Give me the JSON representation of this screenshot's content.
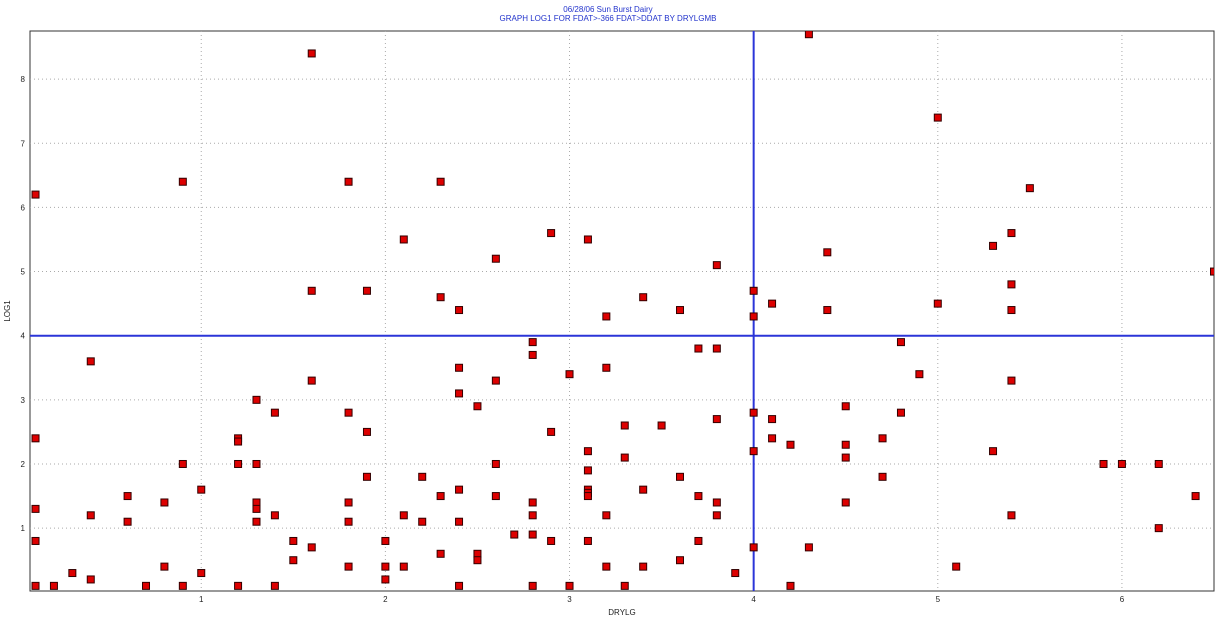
{
  "chart_data": {
    "type": "scatter",
    "title": "06/28/06     Sun Burst Dairy",
    "subtitle": "GRAPH LOG1 FOR FDAT>-366 FDAT>DDAT BY DRYLGMB",
    "xlabel": "DRYLG",
    "ylabel": "LOG1",
    "xlim": [
      0.07,
      6.5
    ],
    "ylim": [
      0.02,
      8.75
    ],
    "xticks": [
      1,
      2,
      3,
      4,
      5,
      6
    ],
    "yticks": [
      1,
      2,
      3,
      4,
      5,
      6,
      7,
      8
    ],
    "grid": true,
    "reference_lines": {
      "x": 4,
      "y": 4
    },
    "colors": {
      "marker": "#dd0000",
      "marker_edge": "#330000",
      "reference": "#2b35d8",
      "grid": "#aaaaaa",
      "text": "#2233cc"
    },
    "points": [
      [
        0.1,
        6.2
      ],
      [
        0.1,
        2.4
      ],
      [
        0.1,
        1.3
      ],
      [
        0.1,
        0.8
      ],
      [
        0.1,
        0.1
      ],
      [
        0.2,
        0.1
      ],
      [
        0.3,
        0.3
      ],
      [
        0.4,
        3.6
      ],
      [
        0.4,
        1.2
      ],
      [
        0.4,
        0.2
      ],
      [
        0.6,
        1.5
      ],
      [
        0.6,
        1.1
      ],
      [
        0.7,
        0.1
      ],
      [
        0.8,
        1.4
      ],
      [
        0.8,
        0.4
      ],
      [
        0.9,
        6.4
      ],
      [
        0.9,
        2.0
      ],
      [
        0.9,
        0.1
      ],
      [
        1.0,
        1.6
      ],
      [
        1.0,
        0.3
      ],
      [
        1.2,
        2.4
      ],
      [
        1.2,
        2.35
      ],
      [
        1.2,
        2.0
      ],
      [
        1.2,
        0.1
      ],
      [
        1.3,
        3.0
      ],
      [
        1.3,
        2.0
      ],
      [
        1.3,
        1.4
      ],
      [
        1.3,
        1.3
      ],
      [
        1.3,
        1.1
      ],
      [
        1.4,
        2.8
      ],
      [
        1.4,
        1.2
      ],
      [
        1.4,
        0.1
      ],
      [
        1.5,
        0.8
      ],
      [
        1.5,
        0.5
      ],
      [
        1.6,
        8.4
      ],
      [
        1.6,
        4.7
      ],
      [
        1.6,
        3.3
      ],
      [
        1.6,
        0.7
      ],
      [
        1.8,
        6.4
      ],
      [
        1.8,
        2.8
      ],
      [
        1.8,
        1.4
      ],
      [
        1.8,
        1.1
      ],
      [
        1.8,
        0.4
      ],
      [
        1.9,
        4.7
      ],
      [
        1.9,
        2.5
      ],
      [
        1.9,
        1.8
      ],
      [
        2.0,
        0.8
      ],
      [
        2.0,
        0.4
      ],
      [
        2.0,
        0.2
      ],
      [
        2.1,
        5.5
      ],
      [
        2.1,
        1.2
      ],
      [
        2.1,
        0.4
      ],
      [
        2.2,
        1.8
      ],
      [
        2.2,
        1.1
      ],
      [
        2.3,
        6.4
      ],
      [
        2.3,
        4.6
      ],
      [
        2.3,
        1.5
      ],
      [
        2.3,
        0.6
      ],
      [
        2.4,
        4.4
      ],
      [
        2.4,
        3.5
      ],
      [
        2.4,
        3.1
      ],
      [
        2.4,
        1.6
      ],
      [
        2.4,
        1.1
      ],
      [
        2.4,
        0.1
      ],
      [
        2.5,
        2.9
      ],
      [
        2.5,
        0.6
      ],
      [
        2.5,
        0.5
      ],
      [
        2.6,
        5.2
      ],
      [
        2.6,
        3.3
      ],
      [
        2.6,
        2.0
      ],
      [
        2.6,
        1.5
      ],
      [
        2.7,
        0.9
      ],
      [
        2.8,
        3.9
      ],
      [
        2.8,
        3.7
      ],
      [
        2.8,
        1.4
      ],
      [
        2.8,
        1.2
      ],
      [
        2.8,
        0.9
      ],
      [
        2.8,
        0.1
      ],
      [
        2.9,
        5.6
      ],
      [
        2.9,
        2.5
      ],
      [
        2.9,
        0.8
      ],
      [
        3.0,
        3.4
      ],
      [
        3.0,
        0.1
      ],
      [
        3.1,
        5.5
      ],
      [
        3.1,
        2.2
      ],
      [
        3.1,
        1.9
      ],
      [
        3.1,
        1.6
      ],
      [
        3.1,
        1.55
      ],
      [
        3.1,
        1.5
      ],
      [
        3.1,
        0.8
      ],
      [
        3.2,
        4.3
      ],
      [
        3.2,
        3.5
      ],
      [
        3.2,
        1.2
      ],
      [
        3.2,
        0.4
      ],
      [
        3.3,
        2.6
      ],
      [
        3.3,
        2.1
      ],
      [
        3.3,
        0.1
      ],
      [
        3.4,
        4.6
      ],
      [
        3.4,
        1.6
      ],
      [
        3.4,
        0.4
      ],
      [
        3.5,
        2.6
      ],
      [
        3.6,
        4.4
      ],
      [
        3.6,
        1.8
      ],
      [
        3.6,
        0.5
      ],
      [
        3.7,
        3.8
      ],
      [
        3.7,
        1.5
      ],
      [
        3.7,
        0.8
      ],
      [
        3.8,
        5.1
      ],
      [
        3.8,
        3.8
      ],
      [
        3.8,
        2.7
      ],
      [
        3.8,
        1.4
      ],
      [
        3.8,
        1.2
      ],
      [
        3.9,
        0.3
      ],
      [
        4.0,
        4.7
      ],
      [
        4.0,
        4.3
      ],
      [
        4.0,
        2.8
      ],
      [
        4.0,
        2.2
      ],
      [
        4.0,
        0.7
      ],
      [
        4.1,
        4.5
      ],
      [
        4.1,
        2.7
      ],
      [
        4.1,
        2.4
      ],
      [
        4.2,
        2.3
      ],
      [
        4.2,
        0.1
      ],
      [
        4.3,
        8.7
      ],
      [
        4.3,
        0.7
      ],
      [
        4.4,
        5.3
      ],
      [
        4.4,
        4.4
      ],
      [
        4.5,
        2.9
      ],
      [
        4.5,
        2.3
      ],
      [
        4.5,
        2.1
      ],
      [
        4.5,
        1.4
      ],
      [
        4.7,
        2.4
      ],
      [
        4.7,
        1.8
      ],
      [
        4.8,
        3.9
      ],
      [
        4.8,
        2.8
      ],
      [
        4.9,
        3.4
      ],
      [
        5.0,
        7.4
      ],
      [
        5.0,
        4.5
      ],
      [
        5.1,
        0.4
      ],
      [
        5.3,
        5.4
      ],
      [
        5.3,
        2.2
      ],
      [
        5.4,
        5.6
      ],
      [
        5.4,
        4.8
      ],
      [
        5.4,
        4.4
      ],
      [
        5.4,
        3.3
      ],
      [
        5.4,
        1.2
      ],
      [
        5.5,
        6.3
      ],
      [
        5.9,
        2.0
      ],
      [
        6.0,
        2.0
      ],
      [
        6.2,
        2.0
      ],
      [
        6.2,
        1.0
      ],
      [
        6.4,
        1.5
      ],
      [
        6.5,
        5.0
      ]
    ]
  }
}
